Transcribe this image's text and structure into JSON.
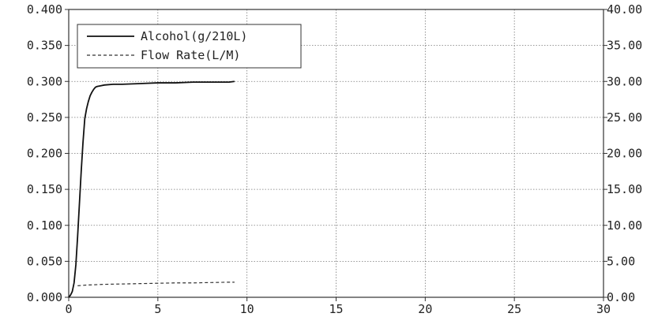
{
  "chart_data": {
    "type": "line",
    "title": "",
    "xlabel": "",
    "ylabel": "",
    "y2label": "",
    "xlim": [
      0,
      30
    ],
    "ylim": [
      0,
      0.4
    ],
    "y2lim": [
      0,
      40
    ],
    "x_ticks": [
      "0",
      "5",
      "10",
      "15",
      "20",
      "25",
      "30"
    ],
    "y_ticks": [
      "0.000",
      "0.050",
      "0.100",
      "0.150",
      "0.200",
      "0.250",
      "0.300",
      "0.350",
      "0.400"
    ],
    "y2_ticks": [
      "0.00",
      "5.00",
      "10.00",
      "15.00",
      "20.00",
      "25.00",
      "30.00",
      "35.00",
      "40.00"
    ],
    "grid": true,
    "legend": "top-left",
    "series": [
      {
        "name": "Alcohol(g/210L)",
        "axis": "left",
        "style": "solid",
        "color": "#111111",
        "x": [
          0,
          0.1,
          0.2,
          0.3,
          0.4,
          0.5,
          0.6,
          0.7,
          0.8,
          0.9,
          1.0,
          1.1,
          1.2,
          1.3,
          1.4,
          1.5,
          1.6,
          1.8,
          2.0,
          2.5,
          3.0,
          4.0,
          5.0,
          6.0,
          7.0,
          8.0,
          9.0,
          9.3
        ],
        "y": [
          0.0,
          0.003,
          0.008,
          0.02,
          0.045,
          0.085,
          0.13,
          0.175,
          0.215,
          0.248,
          0.262,
          0.272,
          0.28,
          0.285,
          0.289,
          0.292,
          0.293,
          0.294,
          0.295,
          0.296,
          0.296,
          0.297,
          0.298,
          0.298,
          0.299,
          0.299,
          0.299,
          0.3
        ]
      },
      {
        "name": "Flow Rate(L/M)",
        "axis": "right",
        "style": "dashed",
        "color": "#333333",
        "x": [
          0.5,
          1.0,
          2.0,
          3.0,
          4.0,
          5.0,
          6.0,
          7.0,
          8.0,
          9.0,
          9.3
        ],
        "y": [
          1.6,
          1.7,
          1.8,
          1.85,
          1.9,
          1.95,
          2.0,
          2.0,
          2.05,
          2.1,
          2.1
        ]
      }
    ]
  }
}
